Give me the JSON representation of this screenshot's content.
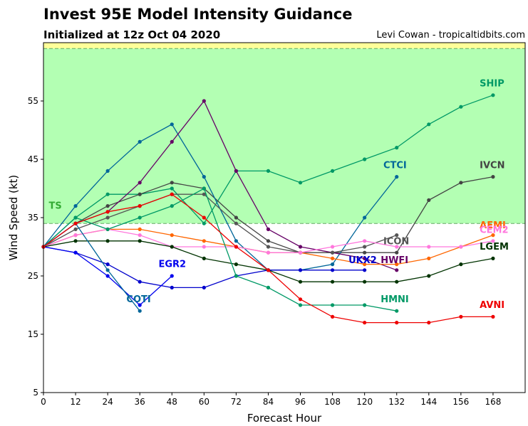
{
  "title": "Invest 95E Model Intensity Guidance",
  "subtitle": "Initialized at 12z Oct 04 2020",
  "credit": "Levi Cowan - tropicaltidbits.com",
  "chart_data": {
    "type": "line",
    "xlabel": "Forecast Hour",
    "ylabel": "Wind Speed (kt)",
    "xlim": [
      0,
      180
    ],
    "ylim": [
      5,
      65
    ],
    "xticks": [
      0,
      12,
      24,
      36,
      48,
      60,
      72,
      84,
      96,
      108,
      120,
      132,
      144,
      156,
      168
    ],
    "yticks": [
      5,
      15,
      25,
      35,
      45,
      55
    ],
    "grid": false,
    "bands": [
      {
        "label": "TS",
        "from": 34,
        "to": 64,
        "color": "#b3ffb3"
      },
      {
        "label": "",
        "from": 64,
        "to": 65,
        "color": "#ffff99"
      }
    ],
    "series": [
      {
        "name": "SHIP",
        "color": "#009966",
        "x": [
          0,
          12,
          24,
          36,
          48,
          60,
          72,
          84,
          96,
          108,
          120,
          132,
          144,
          156,
          168
        ],
        "y": [
          30,
          35,
          39,
          39,
          40,
          34,
          43,
          43,
          41,
          43,
          45,
          47,
          51,
          54,
          56
        ]
      },
      {
        "name": "IVCN",
        "color": "#444444",
        "x": [
          0,
          12,
          24,
          36,
          48,
          60,
          72,
          84,
          96,
          108,
          120,
          132,
          144,
          156,
          168
        ],
        "y": [
          30,
          34,
          37,
          39,
          41,
          40,
          35,
          31,
          29,
          29,
          29,
          29,
          38,
          41,
          42
        ]
      },
      {
        "name": "CTCI",
        "color": "#006699",
        "x": [
          0,
          12,
          24,
          36,
          48,
          60,
          72,
          84,
          96,
          108,
          120,
          132
        ],
        "y": [
          30,
          37,
          43,
          48,
          51,
          42,
          31,
          26,
          26,
          27,
          35,
          42
        ]
      },
      {
        "name": "HWFI",
        "color": "#660066",
        "x": [
          0,
          12,
          24,
          36,
          48,
          60,
          72,
          84,
          96,
          108,
          120,
          132
        ],
        "y": [
          30,
          34,
          36,
          41,
          48,
          55,
          43,
          33,
          30,
          29,
          28,
          26
        ]
      },
      {
        "name": "ICON",
        "color": "#555555",
        "x": [
          0,
          12,
          24,
          36,
          48,
          60,
          72,
          84,
          96,
          108,
          120,
          132
        ],
        "y": [
          30,
          33,
          35,
          37,
          39,
          39,
          34,
          30,
          29,
          29,
          30,
          32
        ]
      },
      {
        "name": "AEMI",
        "color": "#ff6600",
        "x": [
          0,
          12,
          24,
          36,
          48,
          60,
          72,
          84,
          96,
          108,
          120,
          132,
          144,
          156,
          168
        ],
        "y": [
          30,
          32,
          33,
          33,
          32,
          31,
          30,
          29,
          29,
          28,
          27,
          27,
          28,
          30,
          32
        ]
      },
      {
        "name": "CEM2",
        "color": "#ff77dd",
        "x": [
          0,
          12,
          24,
          36,
          48,
          60,
          72,
          84,
          96,
          108,
          120,
          132,
          144,
          156,
          168
        ],
        "y": [
          30,
          32,
          33,
          32,
          30,
          30,
          30,
          29,
          29,
          30,
          31,
          30,
          30,
          30,
          31
        ]
      },
      {
        "name": "LGEM",
        "color": "#003300",
        "x": [
          0,
          12,
          24,
          36,
          48,
          60,
          72,
          84,
          96,
          108,
          120,
          132,
          144,
          156,
          168
        ],
        "y": [
          30,
          31,
          31,
          31,
          30,
          28,
          27,
          26,
          24,
          24,
          24,
          24,
          25,
          27,
          28
        ]
      },
      {
        "name": "UKX2",
        "color": "#0000cc",
        "x": [
          0,
          12,
          24,
          36,
          48,
          60,
          72,
          84,
          96,
          108,
          120
        ],
        "y": [
          30,
          29,
          27,
          24,
          23,
          23,
          25,
          26,
          26,
          26,
          26
        ]
      },
      {
        "name": "EGR2",
        "color": "#0000ee",
        "x": [
          0,
          12,
          24,
          36,
          48
        ],
        "y": [
          30,
          29,
          25,
          20,
          25
        ]
      },
      {
        "name": "COTI",
        "color": "#006699",
        "x": [
          0,
          12,
          24,
          36
        ],
        "y": [
          30,
          34,
          26,
          19
        ]
      },
      {
        "name": "HMNI",
        "color": "#009966",
        "x": [
          0,
          12,
          24,
          36,
          48,
          60,
          72,
          84,
          96,
          108,
          120,
          132
        ],
        "y": [
          30,
          35,
          33,
          35,
          37,
          40,
          25,
          23,
          20,
          20,
          20,
          19
        ]
      },
      {
        "name": "AVNI",
        "color": "#ee0000",
        "x": [
          0,
          12,
          24,
          36,
          48,
          60,
          72,
          84,
          96,
          108,
          120,
          132,
          144,
          156,
          168
        ],
        "y": [
          30,
          34,
          36,
          37,
          39,
          35,
          30,
          26,
          21,
          18,
          17,
          17,
          17,
          18,
          18
        ]
      }
    ],
    "annotations": [
      {
        "text": "TS",
        "x": 2,
        "y": 36.5,
        "color": "#33aa33"
      },
      {
        "text": "SHIP",
        "x": 163,
        "y": 57.5,
        "color": "#009966"
      },
      {
        "text": "IVCN",
        "x": 163,
        "y": 43.5,
        "color": "#444444"
      },
      {
        "text": "CTCI",
        "x": 127,
        "y": 43.5,
        "color": "#006699"
      },
      {
        "text": "AEMI",
        "x": 163,
        "y": 33.2,
        "color": "#ff6600"
      },
      {
        "text": "CEM2",
        "x": 163,
        "y": 32.4,
        "color": "#ff77dd"
      },
      {
        "text": "ICON",
        "x": 127,
        "y": 30.4,
        "color": "#555555"
      },
      {
        "text": "LGEM",
        "x": 163,
        "y": 29.5,
        "color": "#003300"
      },
      {
        "text": "HWFI",
        "x": 126,
        "y": 27.2,
        "color": "#660066"
      },
      {
        "text": "UKX2",
        "x": 114,
        "y": 27.2,
        "color": "#0000cc"
      },
      {
        "text": "EGR2",
        "x": 43,
        "y": 26.5,
        "color": "#0000ee"
      },
      {
        "text": "COTI",
        "x": 31,
        "y": 20.5,
        "color": "#006699"
      },
      {
        "text": "HMNI",
        "x": 126,
        "y": 20.5,
        "color": "#009966"
      },
      {
        "text": "AVNI",
        "x": 163,
        "y": 19.5,
        "color": "#ee0000"
      }
    ]
  }
}
